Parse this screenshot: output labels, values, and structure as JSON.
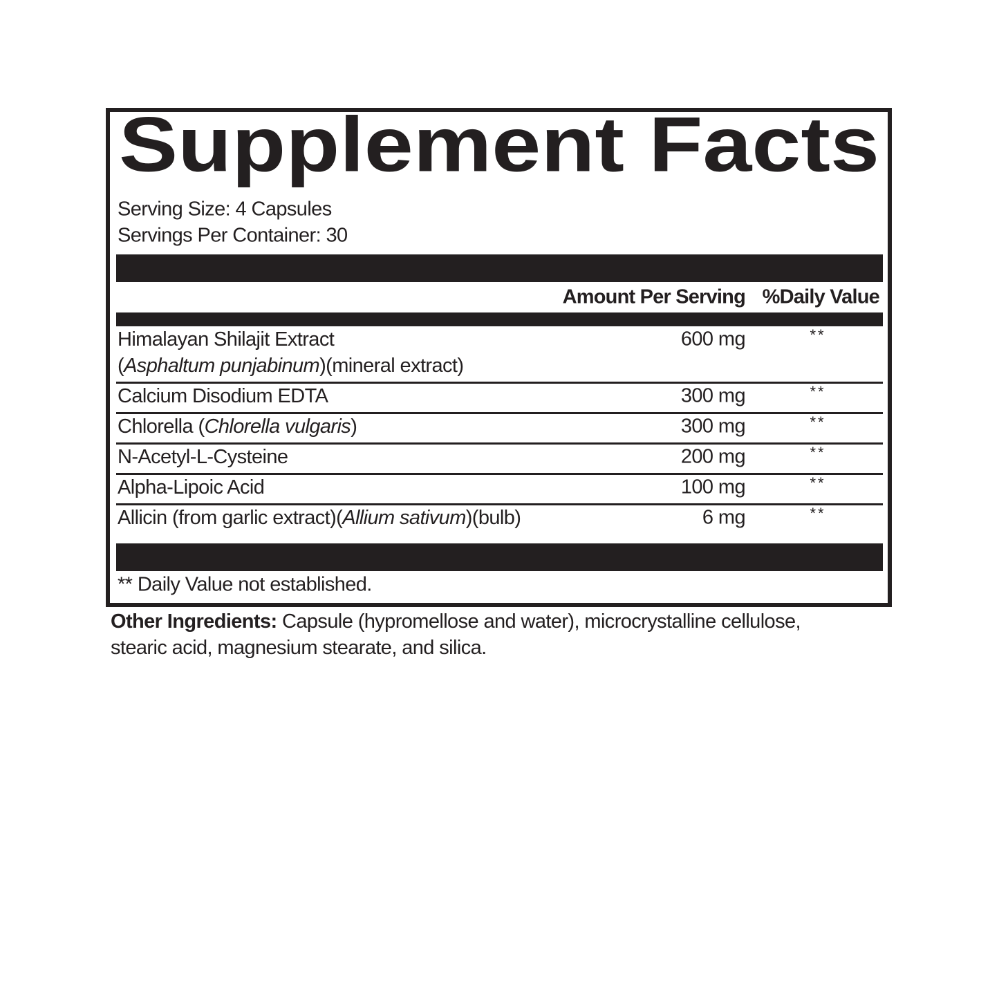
{
  "title": "Supplement Facts",
  "serving_size": "Serving Size: 4 Capsules",
  "servings_per_container": "Servings Per Container: 30",
  "table": {
    "header": [
      "Amount Per Serving",
      "%Daily Value"
    ],
    "rows": [
      {
        "name": [
          [
            {
              "text": "Himalayan Shilajit Extract",
              "italic": false
            }
          ],
          [
            {
              "text": "(",
              "italic": false
            },
            {
              "text": "Asphaltum punjabinum",
              "italic": true
            },
            {
              "text": ")(mineral extract)",
              "italic": false
            }
          ]
        ],
        "amount": "600 mg",
        "daily_value": "**"
      },
      {
        "name": [
          [
            {
              "text": "Calcium Disodium EDTA",
              "italic": false
            }
          ]
        ],
        "amount": "300 mg",
        "daily_value": "**"
      },
      {
        "name": [
          [
            {
              "text": "Chlorella (",
              "italic": false
            },
            {
              "text": "Chlorella vulgaris",
              "italic": true
            },
            {
              "text": ")",
              "italic": false
            }
          ]
        ],
        "amount": "300 mg",
        "daily_value": "**"
      },
      {
        "name": [
          [
            {
              "text": "N-Acetyl-L-Cysteine",
              "italic": false
            }
          ]
        ],
        "amount": "200 mg",
        "daily_value": "**"
      },
      {
        "name": [
          [
            {
              "text": "Alpha-Lipoic Acid",
              "italic": false
            }
          ]
        ],
        "amount": "100 mg",
        "daily_value": "**"
      },
      {
        "name": [
          [
            {
              "text": "Allicin (from garlic extract)(",
              "italic": false
            },
            {
              "text": "Allium sativum",
              "italic": true
            },
            {
              "text": ")(bulb)",
              "italic": false
            }
          ]
        ],
        "amount": "6 mg",
        "daily_value": "**"
      }
    ]
  },
  "footnote": "** Daily Value not established.",
  "other_ingredients": {
    "label": "Other Ingredients:",
    "text": "Capsule (hypromellose and water), microcrystalline cellulose, stearic acid, magnesium stearate, and silica."
  }
}
